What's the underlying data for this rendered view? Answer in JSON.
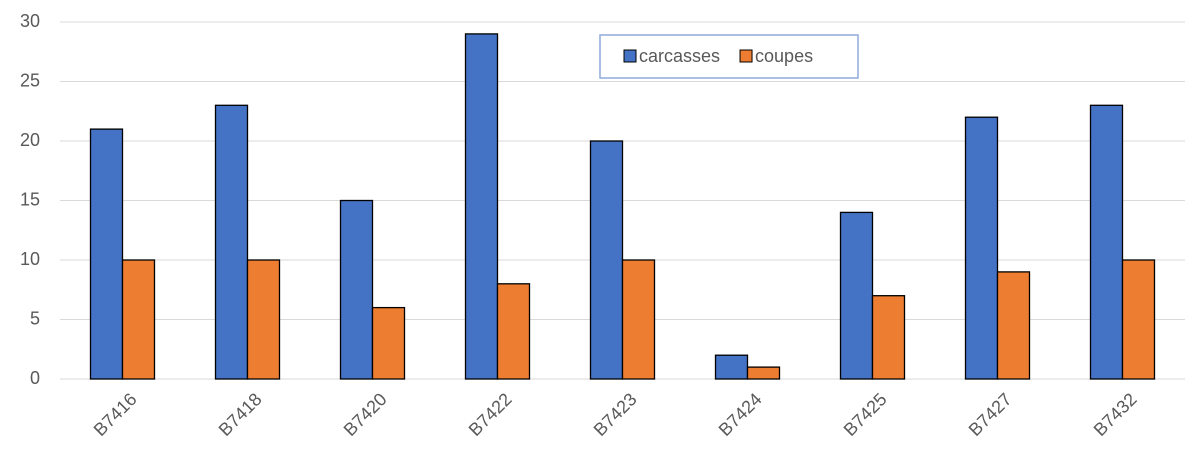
{
  "chart_data": {
    "type": "bar",
    "categories": [
      "B7416",
      "B7418",
      "B7420",
      "B7422",
      "B7423",
      "B7424",
      "B7425",
      "B7427",
      "B7432"
    ],
    "series": [
      {
        "name": "carcasses",
        "color": "#4472c4",
        "values": [
          21,
          23,
          15,
          29,
          20,
          2,
          14,
          22,
          23
        ]
      },
      {
        "name": "coupes",
        "color": "#ed7d31",
        "values": [
          10,
          10,
          6,
          8,
          10,
          1,
          7,
          9,
          10
        ]
      }
    ],
    "ylim": [
      0,
      30
    ],
    "yticks": [
      0,
      5,
      10,
      15,
      20,
      25,
      30
    ],
    "grid": true,
    "legend": "top"
  }
}
